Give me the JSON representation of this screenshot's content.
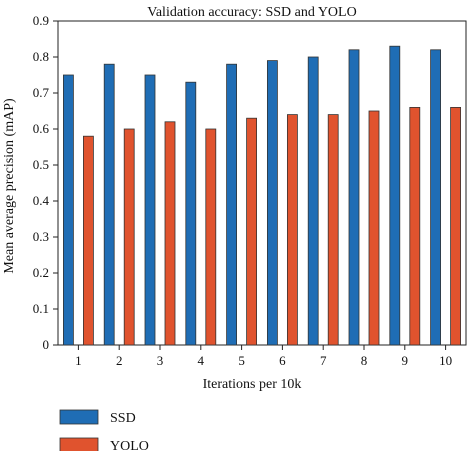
{
  "chart_data": {
    "type": "bar",
    "title": "Validation accuracy: SSD and YOLO",
    "xlabel": "Iterations per 10k",
    "ylabel": "Mean average precision (mAP)",
    "categories": [
      "1",
      "2",
      "3",
      "4",
      "5",
      "6",
      "7",
      "8",
      "9",
      "10"
    ],
    "series": [
      {
        "name": "SSD",
        "color": "#1f6db5",
        "values": [
          0.75,
          0.78,
          0.75,
          0.73,
          0.78,
          0.79,
          0.8,
          0.82,
          0.83,
          0.82
        ]
      },
      {
        "name": "YOLO",
        "color": "#e0532e",
        "values": [
          0.58,
          0.6,
          0.62,
          0.6,
          0.63,
          0.64,
          0.64,
          0.65,
          0.66,
          0.66
        ]
      }
    ],
    "ylim": [
      0,
      0.9
    ],
    "yticks": [
      "0",
      "0.1",
      "0.2",
      "0.3",
      "0.4",
      "0.5",
      "0.6",
      "0.7",
      "0.8",
      "0.9"
    ],
    "grid": false,
    "legend": "bottom-left"
  }
}
